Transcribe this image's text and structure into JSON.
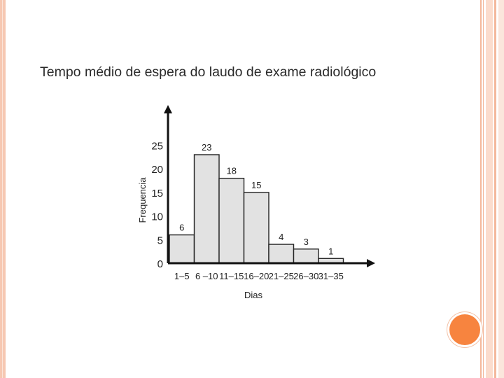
{
  "slide": {
    "accent_color": "#f7843f",
    "frame_color": "#f3b89c"
  },
  "chart_data": {
    "type": "bar",
    "title": "Tempo médio de espera do laudo de exame radiológico",
    "xlabel": "Dias",
    "ylabel": "Frequencia",
    "categories": [
      "1–5",
      "6 –10",
      "11–15",
      "16–20",
      "21–25",
      "26–30",
      "31–35"
    ],
    "values": [
      6,
      23,
      18,
      15,
      4,
      3,
      1
    ],
    "value_labels": [
      "6",
      "23",
      "18",
      "15",
      "4",
      "3",
      "1"
    ],
    "yticks": [
      0,
      5,
      10,
      15,
      20,
      25
    ],
    "ylim": [
      0,
      25
    ],
    "grid": false,
    "bar_color": "#e2e2e2",
    "bar_edge_color": "#222222"
  }
}
